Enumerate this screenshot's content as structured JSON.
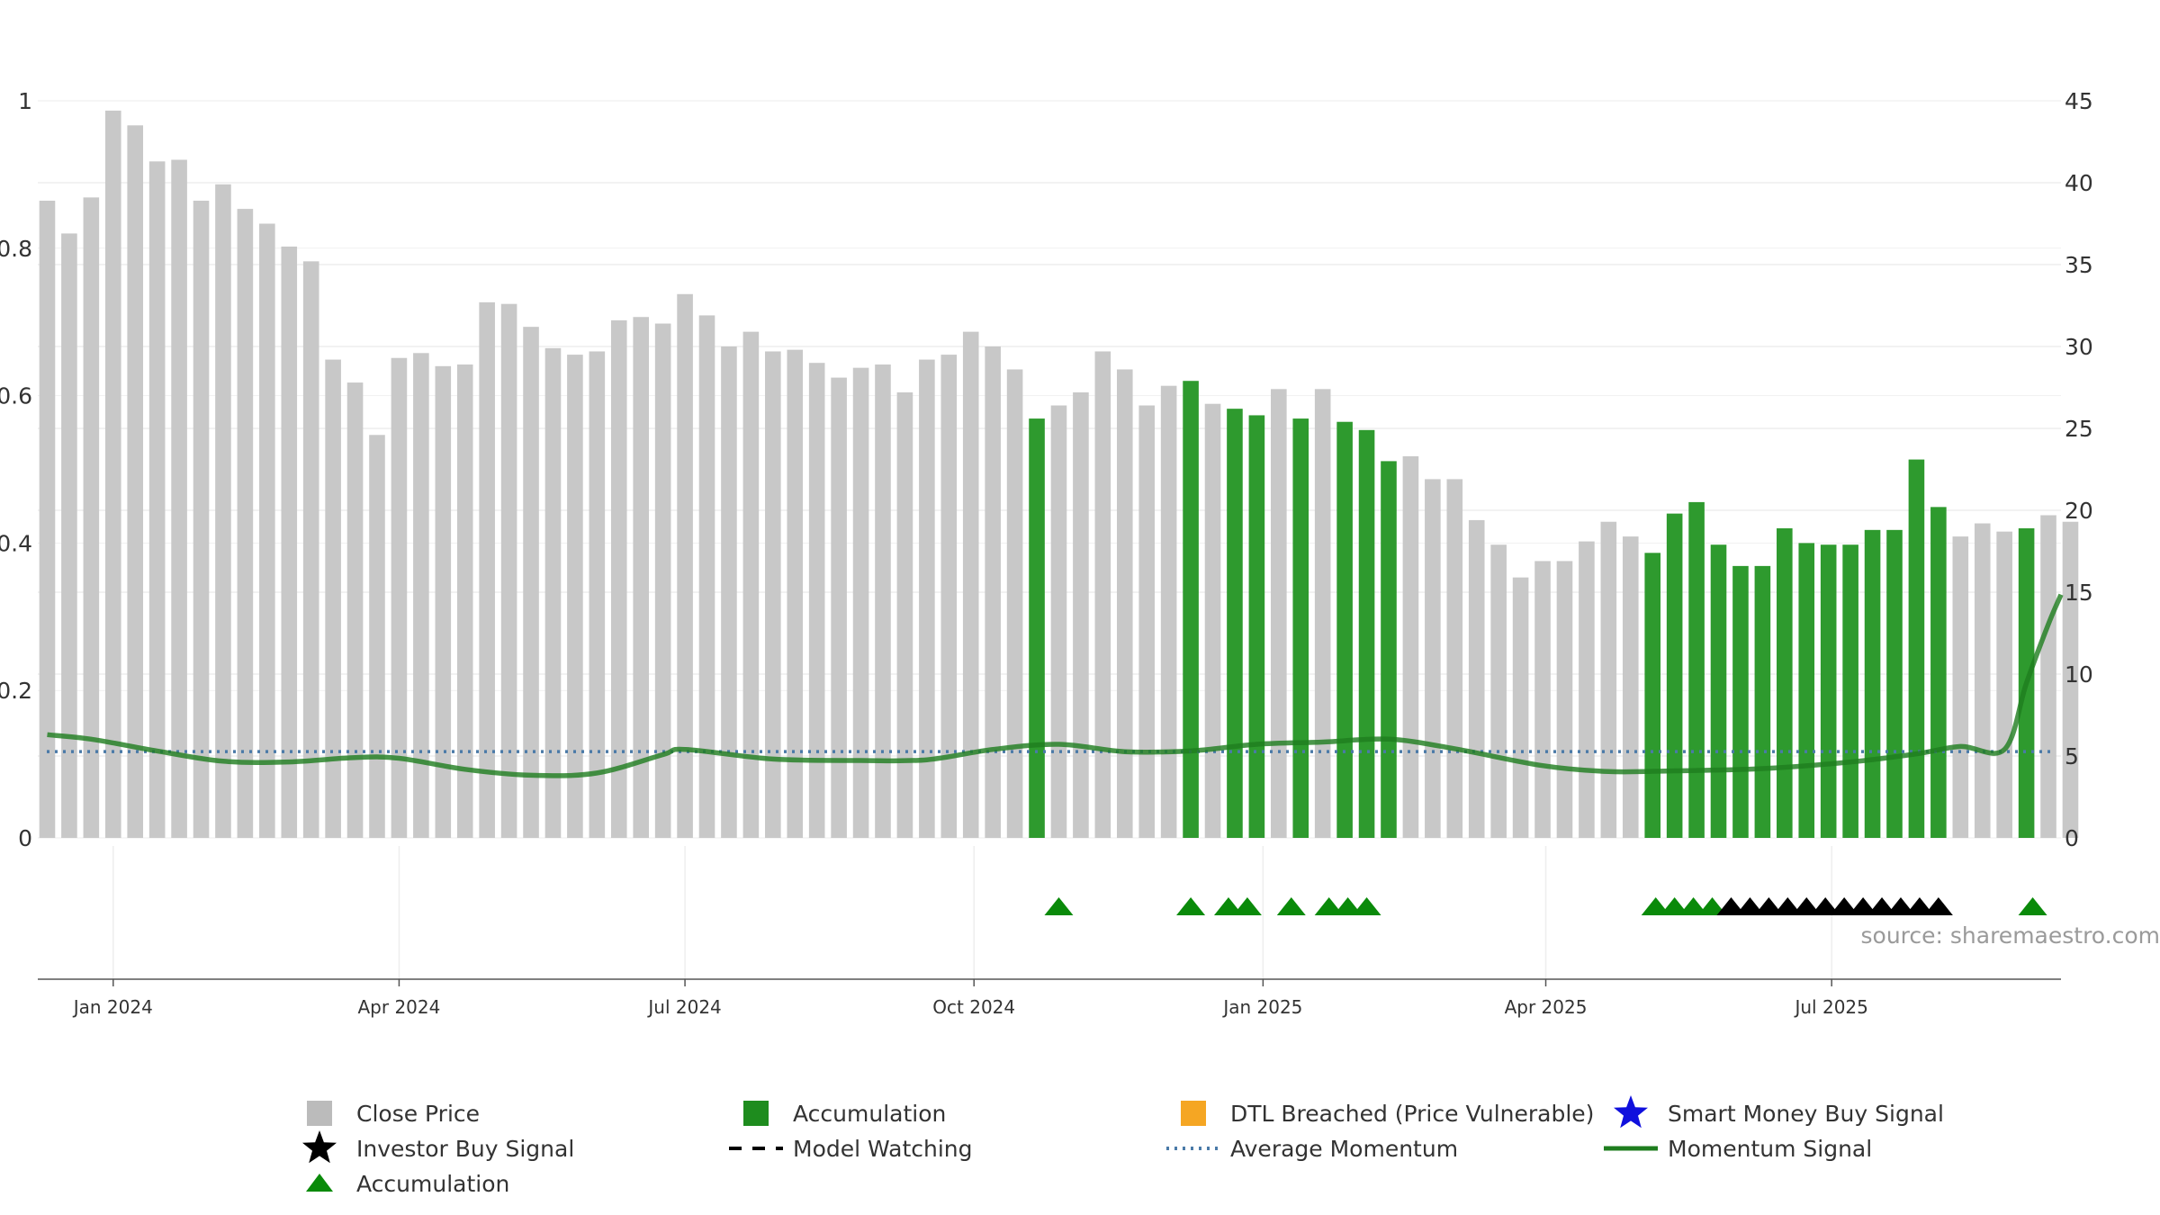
{
  "chart_data": {
    "type": "bar",
    "source": "source: sharemaestro.com",
    "left_axis": {
      "ylim": [
        0,
        1
      ],
      "ticks": [
        "0",
        "0.2",
        "0.4",
        "0.6",
        "0.8",
        "1"
      ]
    },
    "right_axis": {
      "ylim": [
        0,
        45
      ],
      "ticks": [
        "0",
        "5",
        "10",
        "15",
        "20",
        "25",
        "30",
        "35",
        "40",
        "45"
      ]
    },
    "x_axis": {
      "start": "2023-12-08",
      "end": "2025-09-12",
      "ticks": [
        {
          "date": "2024-01-01",
          "label": "Jan 2024"
        },
        {
          "date": "2024-04-01",
          "label": "Apr 2024"
        },
        {
          "date": "2024-07-01",
          "label": "Jul 2024"
        },
        {
          "date": "2024-10-01",
          "label": "Oct 2024"
        },
        {
          "date": "2025-01-01",
          "label": "Jan 2025"
        },
        {
          "date": "2025-04-01",
          "label": "Apr 2025"
        },
        {
          "date": "2025-07-01",
          "label": "Jul 2025"
        }
      ]
    },
    "colors": {
      "close_price": "#c8c8c8",
      "accumulation_bar": "#2e9a2e",
      "accumulation_marker": "#0a8a0a",
      "investor_buy": "#000000",
      "dtl_breached": "#f5a623",
      "smart_money": "#1010dd",
      "average_momentum": "#4a7aa8",
      "momentum_signal": "#1e7d1e"
    },
    "bars": {
      "first_date": "2023-12-11",
      "interval_days": 7,
      "close_prices": [
        38.9,
        36.9,
        39.1,
        44.4,
        43.5,
        41.3,
        41.4,
        38.9,
        39.9,
        38.4,
        37.5,
        36.1,
        35.2,
        29.2,
        27.8,
        24.6,
        29.3,
        29.6,
        28.8,
        28.9,
        32.7,
        32.6,
        31.2,
        29.9,
        29.5,
        29.7,
        31.6,
        31.8,
        31.4,
        33.2,
        31.9,
        30.0,
        30.9,
        29.7,
        29.8,
        29.0,
        28.1,
        28.7,
        28.9,
        27.2,
        29.2,
        29.5,
        30.9,
        30.0,
        28.6,
        25.6,
        26.4,
        27.2,
        29.7,
        28.6,
        26.4,
        27.6,
        27.9,
        26.5,
        26.2,
        25.8,
        27.4,
        25.6,
        27.4,
        25.4,
        24.9,
        23.0,
        23.3,
        21.9,
        21.9,
        19.4,
        17.9,
        15.9,
        16.9,
        16.9,
        18.1,
        19.3,
        18.4,
        17.4,
        19.8,
        20.5,
        17.9,
        16.6,
        16.6,
        18.9,
        18.0,
        17.9,
        17.9,
        18.8,
        18.8,
        23.1,
        20.2,
        18.4,
        19.2,
        18.7,
        18.9,
        19.7,
        19.3
      ],
      "accumulation_indices": [
        45,
        52,
        54,
        55,
        57,
        59,
        60,
        61,
        73,
        74,
        75,
        76,
        77,
        78,
        79,
        80,
        81,
        82,
        83,
        84,
        85,
        86,
        90
      ]
    },
    "markers": {
      "accumulation_dates": [
        "2024-10-28",
        "2024-12-09",
        "2024-12-21",
        "2024-12-27",
        "2025-01-10",
        "2025-01-22",
        "2025-01-28",
        "2025-02-03",
        "2025-05-06",
        "2025-05-12",
        "2025-05-18",
        "2025-05-24",
        "2025-09-03"
      ],
      "investor_buy_dates": [
        "2025-05-30",
        "2025-06-05",
        "2025-06-11",
        "2025-06-17",
        "2025-06-23",
        "2025-06-29",
        "2025-07-05",
        "2025-07-11",
        "2025-07-17",
        "2025-07-23",
        "2025-07-29",
        "2025-08-04"
      ]
    },
    "average_momentum": 0.117,
    "momentum_signal": [
      {
        "date": "2023-12-11",
        "value": 0.14
      },
      {
        "date": "2023-12-25",
        "value": 0.134
      },
      {
        "date": "2024-01-15",
        "value": 0.118
      },
      {
        "date": "2024-02-05",
        "value": 0.104
      },
      {
        "date": "2024-02-26",
        "value": 0.103
      },
      {
        "date": "2024-03-18",
        "value": 0.109
      },
      {
        "date": "2024-04-01",
        "value": 0.108
      },
      {
        "date": "2024-04-22",
        "value": 0.093
      },
      {
        "date": "2024-05-13",
        "value": 0.085
      },
      {
        "date": "2024-06-03",
        "value": 0.088
      },
      {
        "date": "2024-06-24",
        "value": 0.113
      },
      {
        "date": "2024-07-01",
        "value": 0.12
      },
      {
        "date": "2024-07-29",
        "value": 0.107
      },
      {
        "date": "2024-08-26",
        "value": 0.105
      },
      {
        "date": "2024-09-16",
        "value": 0.106
      },
      {
        "date": "2024-10-07",
        "value": 0.12
      },
      {
        "date": "2024-10-28",
        "value": 0.127
      },
      {
        "date": "2024-11-18",
        "value": 0.117
      },
      {
        "date": "2024-12-09",
        "value": 0.118
      },
      {
        "date": "2024-12-30",
        "value": 0.127
      },
      {
        "date": "2025-01-20",
        "value": 0.13
      },
      {
        "date": "2025-02-10",
        "value": 0.134
      },
      {
        "date": "2025-03-03",
        "value": 0.121
      },
      {
        "date": "2025-03-31",
        "value": 0.098
      },
      {
        "date": "2025-04-21",
        "value": 0.09
      },
      {
        "date": "2025-05-12",
        "value": 0.091
      },
      {
        "date": "2025-06-09",
        "value": 0.094
      },
      {
        "date": "2025-07-07",
        "value": 0.103
      },
      {
        "date": "2025-07-28",
        "value": 0.114
      },
      {
        "date": "2025-08-11",
        "value": 0.124
      },
      {
        "date": "2025-08-25",
        "value": 0.12
      },
      {
        "date": "2025-09-01",
        "value": 0.21
      },
      {
        "date": "2025-09-08",
        "value": 0.29
      },
      {
        "date": "2025-09-12",
        "value": 0.33
      }
    ],
    "legend": [
      {
        "label": "Close Price",
        "marker": "gray-square"
      },
      {
        "label": "Accumulation",
        "marker": "green-square"
      },
      {
        "label": "DTL Breached (Price Vulnerable)",
        "marker": "orange-square"
      },
      {
        "label": "Smart Money Buy Signal",
        "marker": "blue-star"
      },
      {
        "label": "Investor Buy Signal",
        "marker": "black-star"
      },
      {
        "label": "Model Watching",
        "marker": "black-dashed-line"
      },
      {
        "label": "Average Momentum",
        "marker": "blue-dotted-line"
      },
      {
        "label": "Momentum Signal",
        "marker": "green-line"
      },
      {
        "label": "Accumulation",
        "marker": "green-triangle"
      }
    ]
  }
}
